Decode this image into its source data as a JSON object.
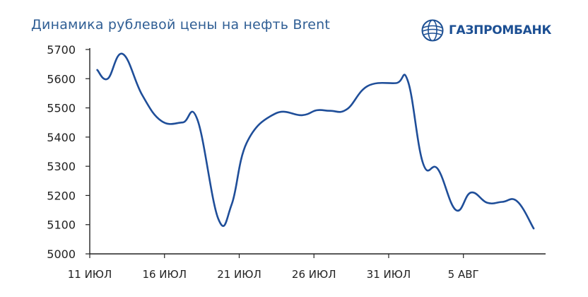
{
  "title": "Динамика рублевой цены на нефть Brent",
  "logo": {
    "text": "ГАЗПРОМБАНК",
    "icon": "gazprombank-globe-icon"
  },
  "colors": {
    "title": "#2f5e94",
    "line": "#1f4e99",
    "axis": "#222222",
    "logo": "#1c4f93"
  },
  "chart_data": {
    "type": "line",
    "title": "Динамика рублевой цены на нефть Brent",
    "xlabel": "",
    "ylabel": "",
    "ylim": [
      5000,
      5700
    ],
    "yticks": [
      5000,
      5100,
      5200,
      5300,
      5400,
      5500,
      5600,
      5700
    ],
    "xlim": [
      0,
      30.5
    ],
    "xticks": [
      {
        "x": 0,
        "label": "11 ИЮЛ"
      },
      {
        "x": 5,
        "label": "16 ИЮЛ"
      },
      {
        "x": 10,
        "label": "21 ИЮЛ"
      },
      {
        "x": 15,
        "label": "26 ИЮЛ"
      },
      {
        "x": 20,
        "label": "31 ИЮЛ"
      },
      {
        "x": 25,
        "label": "5 АВГ"
      }
    ],
    "grid": false,
    "series": [
      {
        "points": [
          [
            0.5,
            5630
          ],
          [
            1.2,
            5600
          ],
          [
            2.2,
            5685
          ],
          [
            3.5,
            5545
          ],
          [
            4.8,
            5455
          ],
          [
            6.2,
            5450
          ],
          [
            7.2,
            5460
          ],
          [
            8.6,
            5120
          ],
          [
            9.5,
            5170
          ],
          [
            10.5,
            5380
          ],
          [
            12.4,
            5480
          ],
          [
            14.2,
            5475
          ],
          [
            15.2,
            5492
          ],
          [
            16.1,
            5490
          ],
          [
            17.2,
            5495
          ],
          [
            18.6,
            5575
          ],
          [
            20.5,
            5585
          ],
          [
            21.3,
            5590
          ],
          [
            22.3,
            5310
          ],
          [
            23.3,
            5290
          ],
          [
            24.5,
            5150
          ],
          [
            25.5,
            5210
          ],
          [
            26.6,
            5175
          ],
          [
            27.6,
            5178
          ],
          [
            28.6,
            5180
          ],
          [
            29.7,
            5087
          ]
        ]
      }
    ]
  }
}
